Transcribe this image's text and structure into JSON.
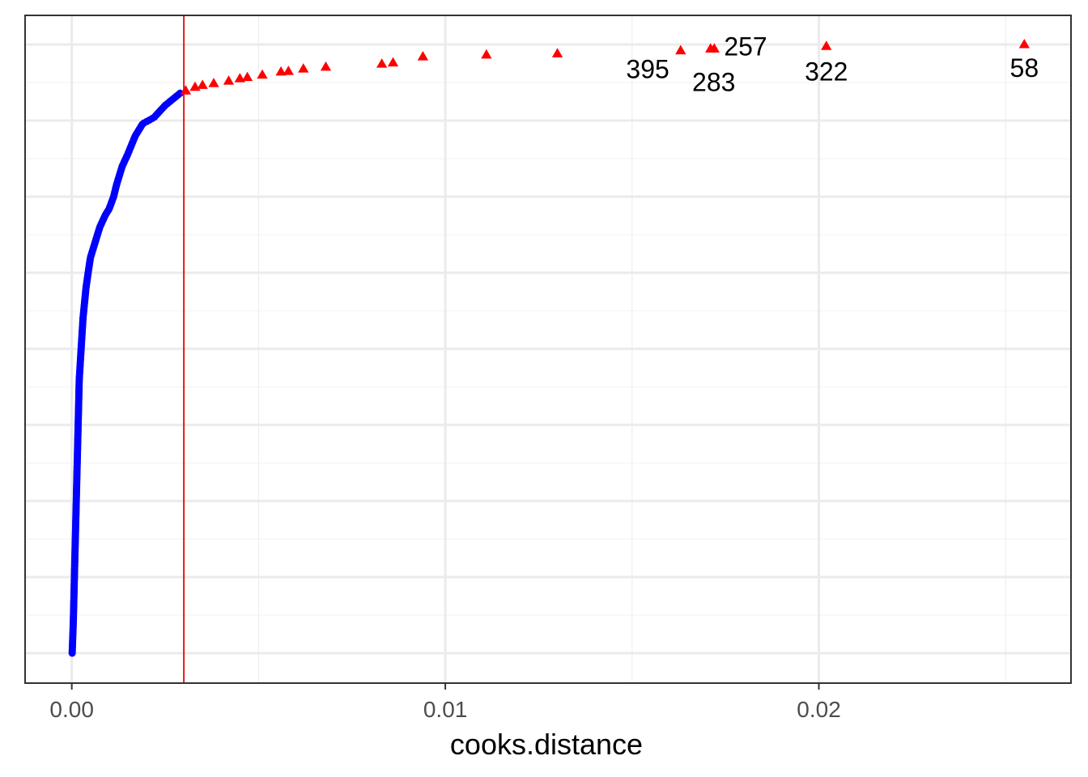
{
  "chart_data": {
    "type": "scatter",
    "title": "",
    "xlabel": "cooks.distance",
    "ylabel": "",
    "xlim": [
      -0.00125,
      0.02675
    ],
    "ylim": [
      0,
      1
    ],
    "x_ticks": [
      {
        "value": 0.0,
        "label": "0.00"
      },
      {
        "value": 0.01,
        "label": "0.01"
      },
      {
        "value": 0.02,
        "label": "0.02"
      }
    ],
    "x_minor_ticks": [
      0.005,
      0.015,
      0.025
    ],
    "grid": true,
    "threshold": {
      "x": 0.003,
      "color": "#E41A1C"
    },
    "n_points": 400,
    "series": [
      {
        "color": "#0000FF",
        "marker": "circle",
        "points": [
          [
            1e-05,
            0.0
          ],
          [
            4e-05,
            0.05
          ],
          [
            6e-05,
            0.1
          ],
          [
            8e-05,
            0.15
          ],
          [
            0.0001,
            0.2
          ],
          [
            0.00012,
            0.25
          ],
          [
            0.00014,
            0.3
          ],
          [
            0.00016,
            0.35
          ],
          [
            0.00018,
            0.4
          ],
          [
            0.0002,
            0.45
          ],
          [
            0.00025,
            0.5
          ],
          [
            0.0003,
            0.55
          ],
          [
            0.00038,
            0.6
          ],
          [
            0.00045,
            0.63
          ],
          [
            0.0005,
            0.65
          ],
          [
            0.00065,
            0.68
          ],
          [
            0.00075,
            0.7
          ],
          [
            0.0009,
            0.72
          ],
          [
            0.001,
            0.73
          ],
          [
            0.00112,
            0.75
          ],
          [
            0.0012,
            0.77
          ],
          [
            0.00135,
            0.8
          ],
          [
            0.0015,
            0.82
          ],
          [
            0.0017,
            0.85
          ],
          [
            0.0019,
            0.87
          ],
          [
            0.0022,
            0.88
          ],
          [
            0.0025,
            0.9
          ],
          [
            0.0029,
            0.92
          ]
        ]
      },
      {
        "color": "#FF0000",
        "marker": "triangle",
        "points": [
          [
            0.00305,
            0.924
          ],
          [
            0.0033,
            0.93
          ],
          [
            0.0035,
            0.933
          ],
          [
            0.0038,
            0.936
          ],
          [
            0.0042,
            0.94
          ],
          [
            0.0045,
            0.944
          ],
          [
            0.0047,
            0.946
          ],
          [
            0.0051,
            0.95
          ],
          [
            0.0056,
            0.955
          ],
          [
            0.0058,
            0.956
          ],
          [
            0.0062,
            0.96
          ],
          [
            0.0068,
            0.963
          ],
          [
            0.0083,
            0.968
          ],
          [
            0.0086,
            0.97
          ],
          [
            0.0094,
            0.98
          ],
          [
            0.0111,
            0.983
          ],
          [
            0.013,
            0.985
          ],
          [
            0.0163,
            0.99
          ],
          [
            0.0171,
            0.993
          ],
          [
            0.0172,
            0.993
          ],
          [
            0.0202,
            0.997
          ],
          [
            0.0255,
            1.0
          ]
        ]
      }
    ],
    "labeled_points": [
      {
        "label": "58",
        "x": 0.0255,
        "y": 1.0
      },
      {
        "label": "322",
        "x": 0.0202,
        "y": 0.997
      },
      {
        "label": "257",
        "x": 0.0172,
        "y": 0.993
      },
      {
        "label": "283",
        "x": 0.0171,
        "y": 0.993
      },
      {
        "label": "395",
        "x": 0.0163,
        "y": 0.99
      }
    ]
  }
}
